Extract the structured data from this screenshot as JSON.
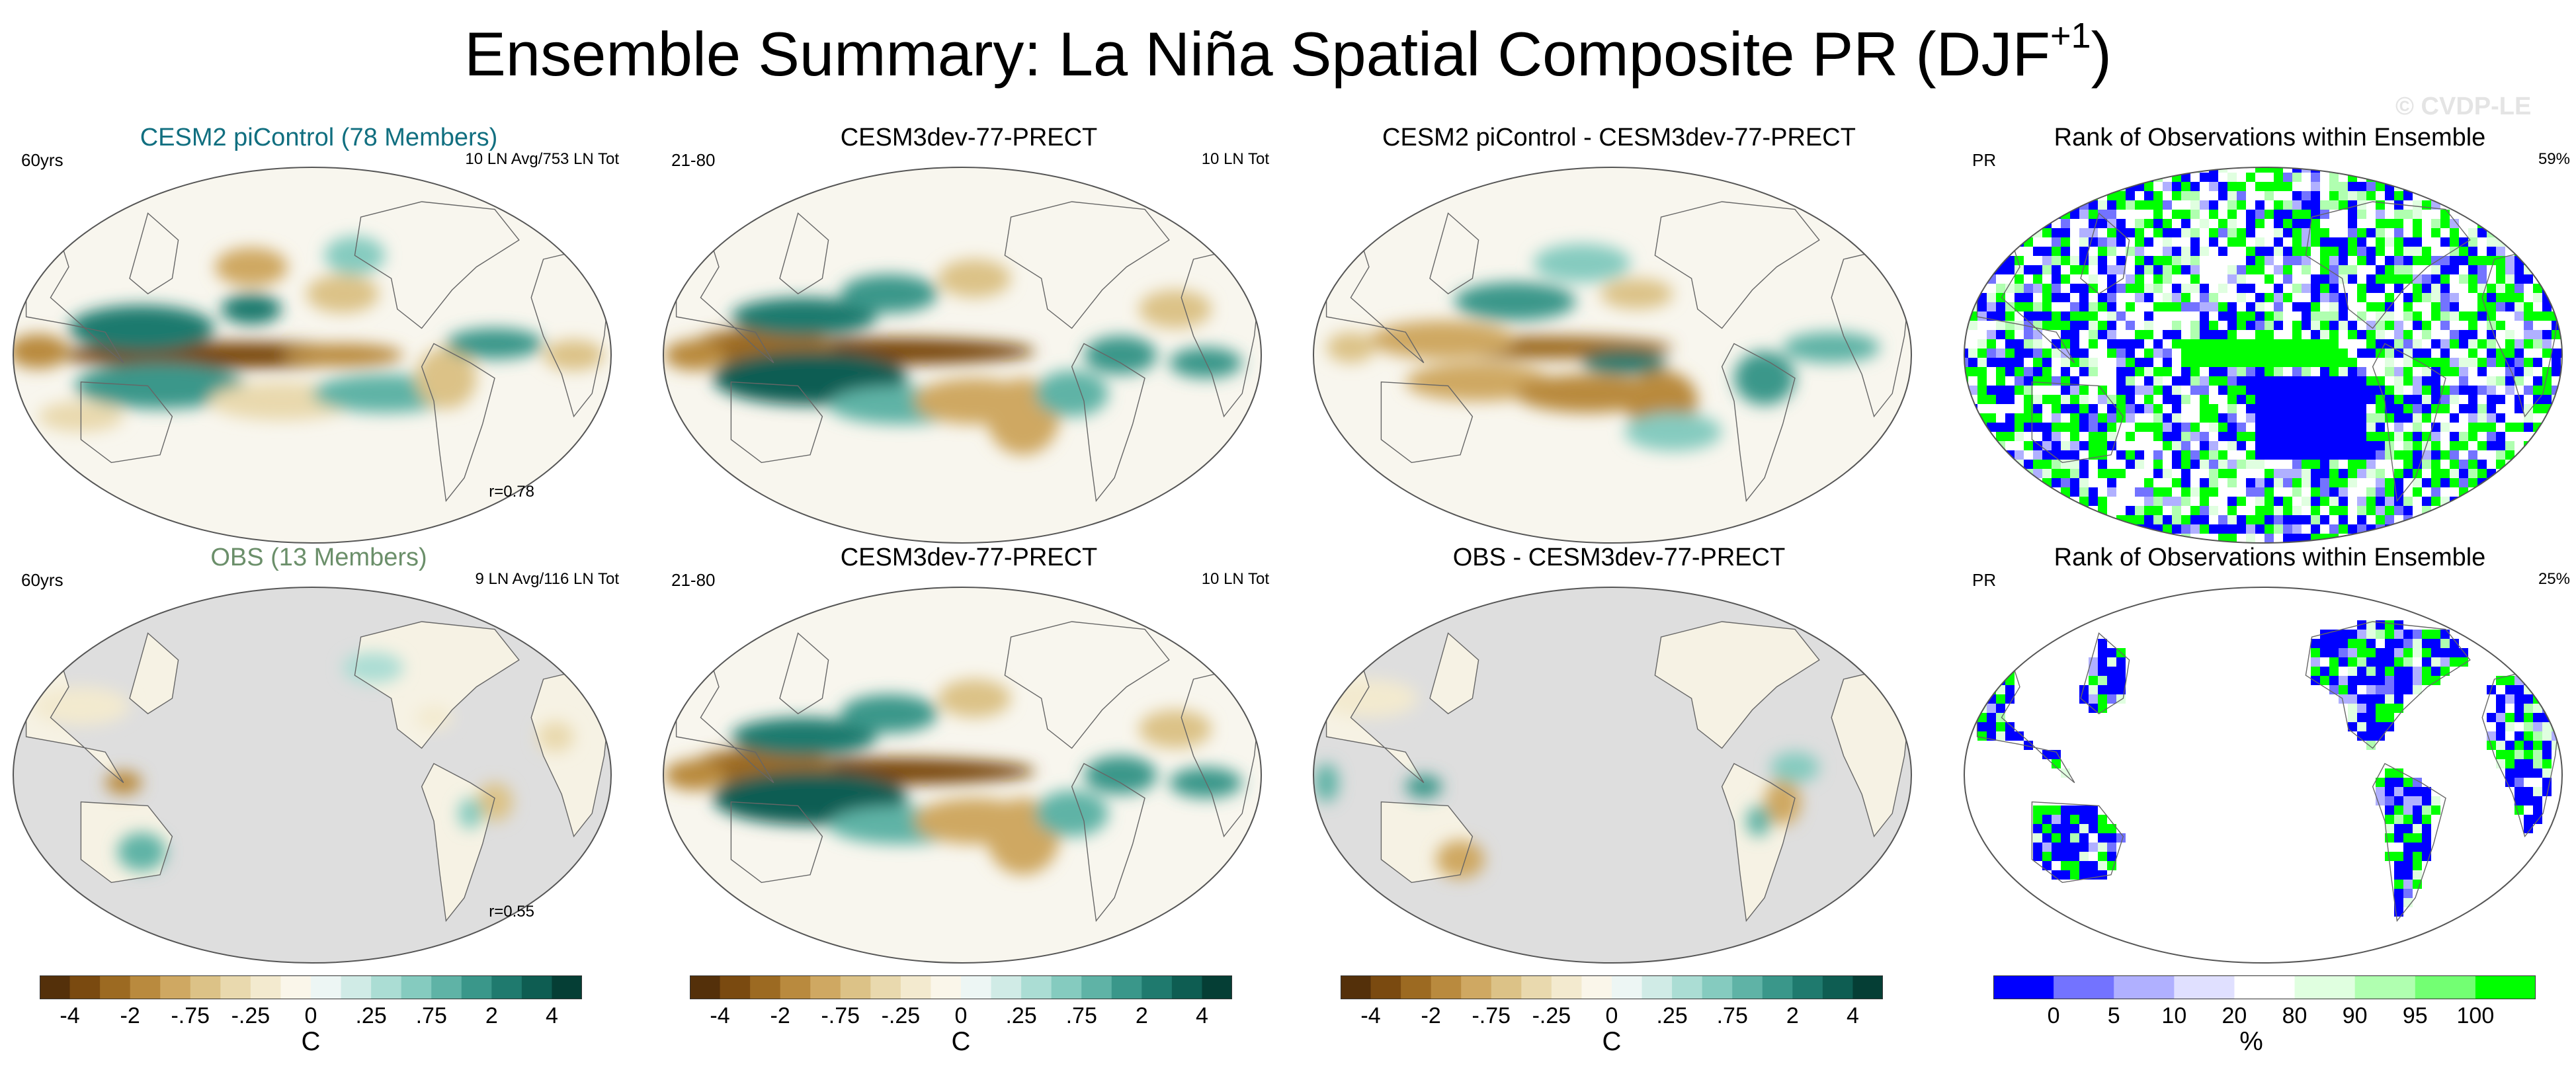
{
  "figure": {
    "title_main": "Ensemble Summary: La Niña Spatial Composite PR (DJF",
    "title_sup": "+1",
    "title_close": ")",
    "watermark": "© CVDP-LE"
  },
  "panels": [
    {
      "key": "a",
      "title": "CESM2 piControl (78 Members)",
      "title_color": "#116f80",
      "left_label": "60yrs",
      "right_label": "10 LN Avg/753 LN Tot",
      "r_label": "r=0.78",
      "style": "cesm-mean",
      "grey_land": false
    },
    {
      "key": "b",
      "title": "CESM3dev-77-PRECT",
      "title_color": "#000000",
      "left_label": "21-80",
      "right_label": "10 LN Tot",
      "r_label": "",
      "style": "cesm3",
      "grey_land": false
    },
    {
      "key": "c",
      "title": "CESM2 piControl - CESM3dev-77-PRECT",
      "title_color": "#000000",
      "left_label": "",
      "right_label": "",
      "r_label": "",
      "style": "diff",
      "grey_land": false
    },
    {
      "key": "d",
      "title": "Rank of Observations within Ensemble",
      "title_color": "#000000",
      "left_label": "PR",
      "right_label": "59%",
      "r_label": "",
      "style": "rank-ocean",
      "grey_land": false
    },
    {
      "key": "e",
      "title": "OBS (13 Members)",
      "title_color": "#6b8f6a",
      "left_label": "60yrs",
      "right_label": "9 LN Avg/116 LN Tot",
      "r_label": "r=0.55",
      "style": "obs",
      "grey_land": true
    },
    {
      "key": "f",
      "title": "CESM3dev-77-PRECT",
      "title_color": "#000000",
      "left_label": "21-80",
      "right_label": "10 LN Tot",
      "r_label": "",
      "style": "cesm3",
      "grey_land": false
    },
    {
      "key": "g",
      "title": "OBS - CESM3dev-77-PRECT",
      "title_color": "#000000",
      "left_label": "",
      "right_label": "",
      "r_label": "",
      "style": "obs-diff",
      "grey_land": true
    },
    {
      "key": "h",
      "title": "Rank of Observations within Ensemble",
      "title_color": "#000000",
      "left_label": "PR",
      "right_label": "25%",
      "r_label": "",
      "style": "rank-land",
      "grey_land": false
    }
  ],
  "chart_data": [
    {
      "type": "heatmap",
      "title": "La Niña composite precipitation maps (DJF+1)",
      "maps": [
        "CESM2 piControl (78 Members)",
        "CESM3dev-77-PRECT",
        "CESM2 piControl - CESM3dev-77-PRECT",
        "OBS (13 Members)",
        "OBS - CESM3dev-77-PRECT"
      ],
      "colorbar": {
        "unit": "C",
        "levels": [
          -4,
          -3,
          -2,
          -1,
          -0.75,
          -0.5,
          -0.25,
          -0.1,
          0,
          0.1,
          0.25,
          0.5,
          0.75,
          1,
          2,
          3,
          4
        ],
        "tick_labels": [
          "-4",
          "-2",
          "-.75",
          "-.25",
          "0",
          ".25",
          ".75",
          "2",
          "4"
        ],
        "colors": [
          "#54300a",
          "#7a4a10",
          "#9c6a22",
          "#b98a3e",
          "#cfa862",
          "#dcc287",
          "#e9d9ae",
          "#f3eacf",
          "#faf6ea",
          "#edf6f4",
          "#d0ebe6",
          "#abddd4",
          "#85cbbf",
          "#5fb3a6",
          "#3a978a",
          "#1f7a6e",
          "#0e5d52",
          "#053e35"
        ]
      }
    },
    {
      "type": "heatmap",
      "title": "Rank of Observations within Ensemble",
      "percent_in_range": {
        "PR (ocean panel)": 59,
        "PR (land panel)": 25
      },
      "colorbar": {
        "unit": "%",
        "levels": [
          0,
          5,
          10,
          20,
          80,
          90,
          95,
          100
        ],
        "tick_labels": [
          "0",
          "5",
          "10",
          "20",
          "80",
          "90",
          "95",
          "100"
        ],
        "colors": [
          "#0000ff",
          "#7373ff",
          "#b0b0ff",
          "#e0e0ff",
          "#ffffff",
          "#e0ffe0",
          "#b0ffb0",
          "#73ff73",
          "#00ff00"
        ]
      }
    }
  ]
}
